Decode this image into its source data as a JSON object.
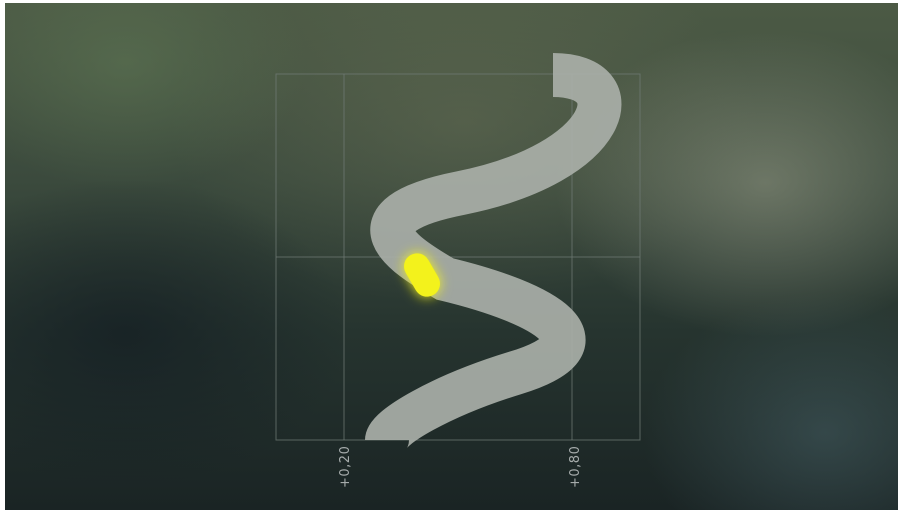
{
  "axis": {
    "tick_left": "+0,20",
    "tick_right": "+0,80"
  },
  "colors": {
    "track": "#a9afa8",
    "player": "#f3f21a",
    "grid": "#6f7a74"
  },
  "icons": {
    "player": "glowing-yellow-capsule"
  }
}
